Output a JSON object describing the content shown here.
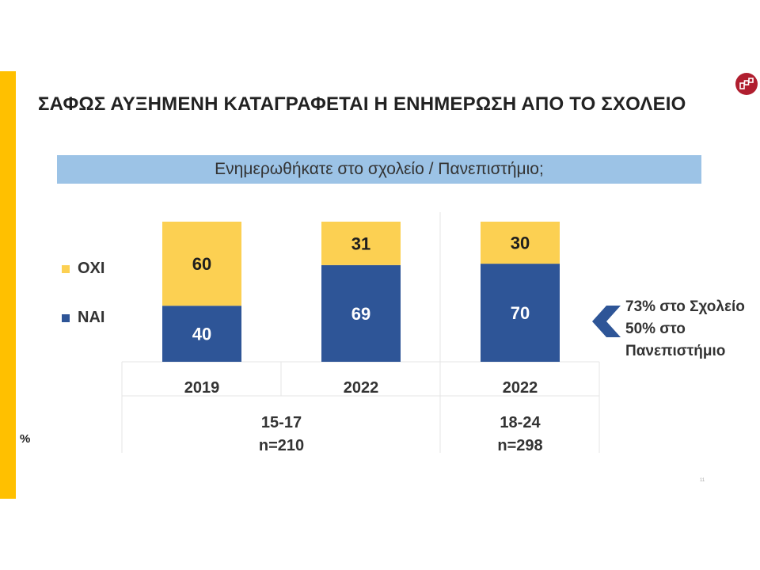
{
  "title": "ΣΑΦΩΣ ΑΥΞΗΜΕΝΗ ΚΑΤΑΓΡΑΦΕΤΑΙ Η ΕΝΗΜΕΡΩΣΗ ΑΠΟ ΤΟ ΣΧΟΛΕΙΟ",
  "question": "Ενημερωθήκατε στο σχολείο / Πανεπιστήμιο;",
  "logo_icon": "pollster-logo-icon",
  "percent_mark": "%",
  "page_number": "11",
  "summary": {
    "icon": "chevron-left-icon",
    "lines": [
      "73% στο Σχολείο",
      "50% στο",
      "Πανεπιστήμιο"
    ]
  },
  "colors": {
    "accent": "#ffc000",
    "oxi": "#fcd052",
    "nai": "#2e5597",
    "banner": "#9cc3e6"
  },
  "chart_data": {
    "type": "bar",
    "stacked": true,
    "categories": [
      "2019",
      "2022",
      "2022"
    ],
    "groups": [
      {
        "label": "15-17",
        "sample": "n=210",
        "categories": [
          0,
          1
        ]
      },
      {
        "label": "18-24",
        "sample": "n=298",
        "categories": [
          2
        ]
      }
    ],
    "series": [
      {
        "name": "ΝΑΙ",
        "values": [
          40,
          69,
          70
        ],
        "color": "#2e5597"
      },
      {
        "name": "ΟΧΙ",
        "values": [
          60,
          31,
          30
        ],
        "color": "#fcd052"
      }
    ],
    "legend": [
      "ΟΧΙ",
      "ΝΑΙ"
    ],
    "legend_position": "left",
    "ylim": [
      0,
      100
    ],
    "unit": "%"
  }
}
